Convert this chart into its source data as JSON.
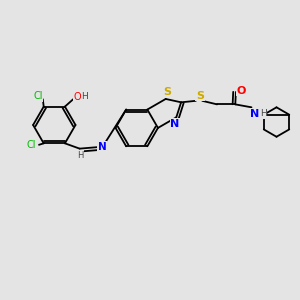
{
  "background_color": "#e4e4e4",
  "bond_color": "#000000",
  "colors": {
    "Cl": "#00bb00",
    "O": "#ff0000",
    "N": "#0000ff",
    "S": "#ccaa00",
    "H": "#444444",
    "C": "#000000"
  },
  "figsize": [
    3.0,
    3.0
  ],
  "dpi": 100,
  "lw": 1.3,
  "fs": 6.5
}
